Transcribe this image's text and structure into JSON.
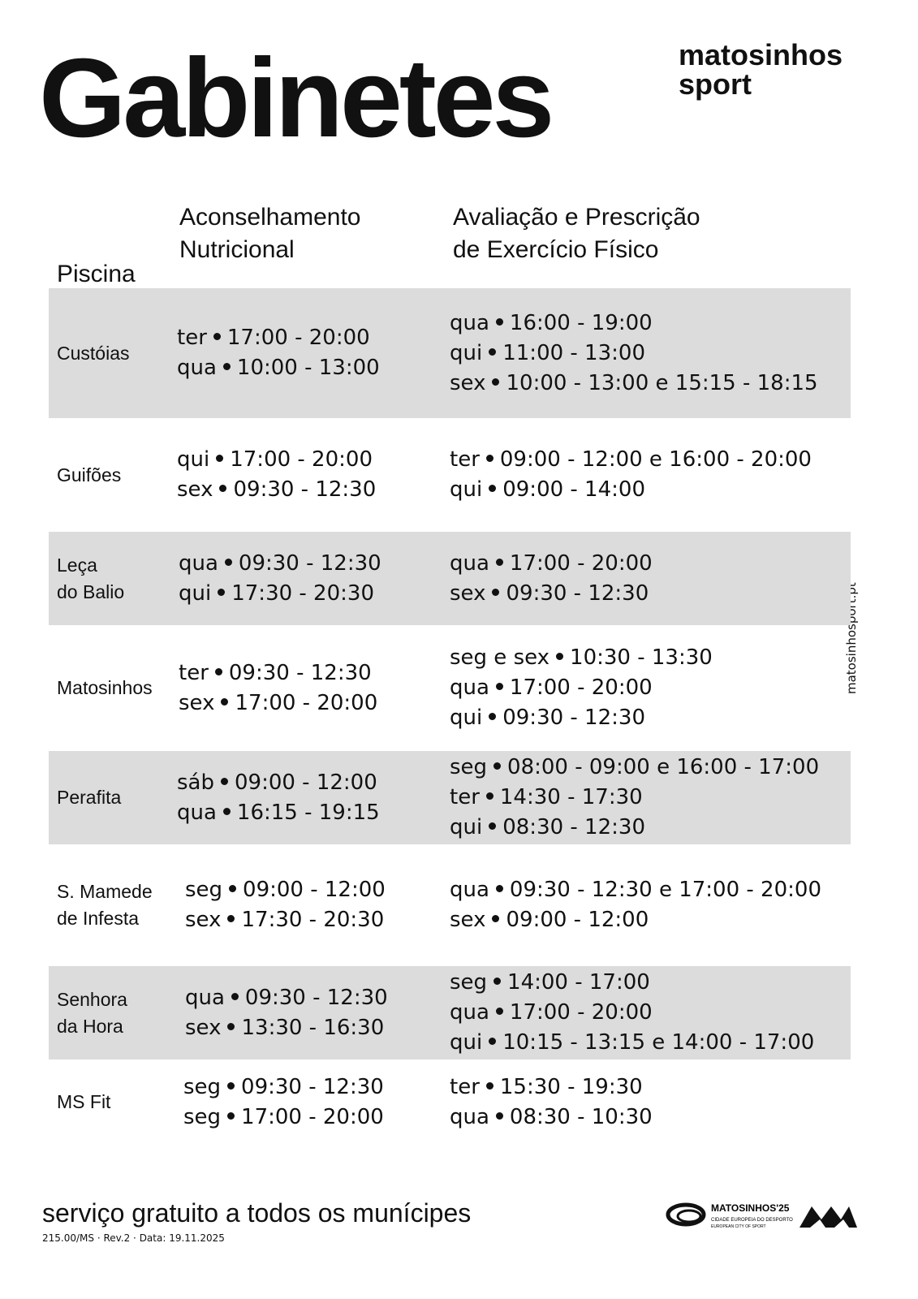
{
  "header": {
    "title": "Gabinetes",
    "brand": [
      "matosinhos",
      "sport"
    ]
  },
  "table": {
    "headers": [
      [
        "Piscina"
      ],
      [
        "Aconselhamento",
        "Nutricional"
      ],
      [
        "Avaliação e Prescrição",
        "de Exercício Físico"
      ]
    ],
    "rows": [
      {
        "name": [
          "Custóias"
        ],
        "nutrition": [
          {
            "day": "ter",
            "time": "17:00 - 20:00"
          },
          {
            "day": "qua",
            "time": "10:00 - 13:00"
          }
        ],
        "exercise": [
          {
            "day": "qua",
            "time": "16:00 - 19:00"
          },
          {
            "day": "qui",
            "time": "11:00 - 13:00"
          },
          {
            "day": "sex",
            "time": "10:00 - 13:00 e 15:15 - 18:15"
          }
        ]
      },
      {
        "name": [
          "Guifões"
        ],
        "nutrition": [
          {
            "day": "qui",
            "time": "17:00 - 20:00"
          },
          {
            "day": "sex",
            "time": "09:30 - 12:30"
          }
        ],
        "exercise": [
          {
            "day": "ter",
            "time": "09:00 - 12:00 e 16:00 - 20:00"
          },
          {
            "day": "qui",
            "time": "09:00 - 14:00"
          }
        ]
      },
      {
        "name": [
          "Leça",
          "do Balio"
        ],
        "nutrition": [
          {
            "day": "qua",
            "time": "09:30 - 12:30"
          },
          {
            "day": "qui",
            "time": "17:30 - 20:30"
          }
        ],
        "exercise": [
          {
            "day": "qua",
            "time": "17:00 - 20:00"
          },
          {
            "day": "sex",
            "time": "09:30 - 12:30"
          }
        ]
      },
      {
        "name": [
          "Matosinhos"
        ],
        "nutrition": [
          {
            "day": "ter",
            "time": "09:30 - 12:30"
          },
          {
            "day": "sex",
            "time": "17:00 - 20:00"
          }
        ],
        "exercise": [
          {
            "day": "seg e sex",
            "time": "10:30 - 13:30"
          },
          {
            "day": "qua",
            "time": "17:00 - 20:00"
          },
          {
            "day": "qui",
            "time": "09:30 - 12:30"
          }
        ]
      },
      {
        "name": [
          "Perafita"
        ],
        "nutrition": [
          {
            "day": "sáb",
            "time": "09:00 - 12:00"
          },
          {
            "day": "qua",
            "time": "16:15 - 19:15"
          }
        ],
        "exercise": [
          {
            "day": "seg",
            "time": "08:00 - 09:00 e 16:00 - 17:00"
          },
          {
            "day": "ter",
            "time": "14:30 - 17:30"
          },
          {
            "day": "qui",
            "time": "08:30 - 12:30"
          }
        ]
      },
      {
        "name": [
          "S. Mamede",
          "de Infesta"
        ],
        "nutrition": [
          {
            "day": "seg",
            "time": "09:00 - 12:00"
          },
          {
            "day": "sex",
            "time": "17:30 - 20:30"
          }
        ],
        "exercise": [
          {
            "day": "qua",
            "time": "09:30 - 12:30 e 17:00 - 20:00"
          },
          {
            "day": "sex",
            "time": "09:00 - 12:00"
          }
        ]
      },
      {
        "name": [
          "Senhora",
          "da Hora"
        ],
        "nutrition": [
          {
            "day": "qua",
            "time": "09:30 - 12:30"
          },
          {
            "day": "sex",
            "time": "13:30 - 16:30"
          }
        ],
        "exercise": [
          {
            "day": "seg",
            "time": "14:00 - 17:00"
          },
          {
            "day": "qua",
            "time": "17:00 - 20:00"
          },
          {
            "day": "qui",
            "time": "10:15 - 13:15 e 14:00 - 17:00"
          }
        ]
      },
      {
        "name": [
          "MS Fit"
        ],
        "nutrition": [
          {
            "day": "seg",
            "time": "09:30 - 12:30"
          },
          {
            "day": "seg",
            "time": "17:00 - 20:00"
          }
        ],
        "exercise": [
          {
            "day": "ter",
            "time": "15:30 - 19:30"
          },
          {
            "day": "qua",
            "time": "08:30 - 10:30"
          }
        ]
      }
    ]
  },
  "side_text": "matosinhosport.pt",
  "footer": {
    "note": "serviço gratuito a todos os munícipes",
    "reference": "215.00/MS · Rev.2 · Data: 19.11.2025",
    "logo": {
      "title": "MATOSINHOS'25",
      "line1": "CIDADE EUROPEIA DO DESPORTO",
      "line2": "EUROPEAN CITY OF SPORT"
    }
  }
}
